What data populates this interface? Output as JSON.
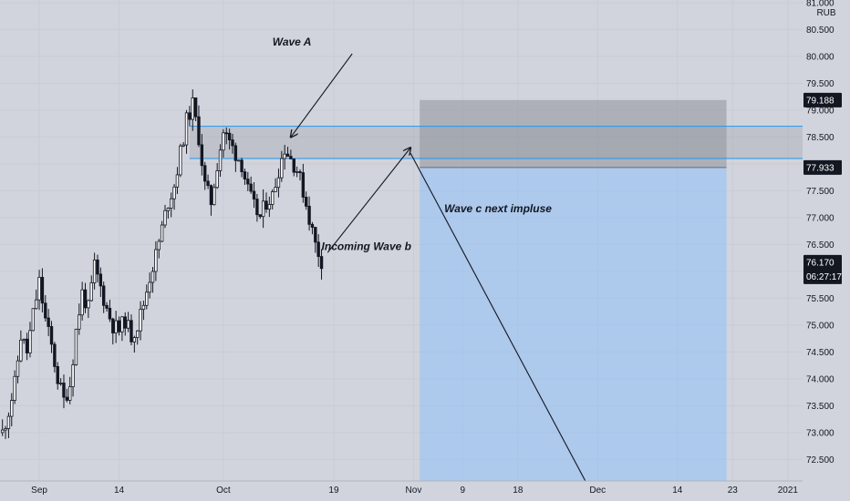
{
  "chart_data": {
    "type": "candlestick",
    "currency": "RUB",
    "y_ticks": [
      "72.500",
      "73.000",
      "73.500",
      "74.000",
      "74.500",
      "75.000",
      "75.500",
      "76.000",
      "76.500",
      "77.000",
      "77.500",
      "78.000",
      "78.500",
      "79.000",
      "79.500",
      "80.000",
      "80.500",
      "81.000"
    ],
    "ylim": [
      72.1,
      81.05
    ],
    "x_ticks": [
      {
        "label": "Sep",
        "day": 0
      },
      {
        "label": "14",
        "day": 13
      },
      {
        "label": "Oct",
        "day": 30
      },
      {
        "label": "19",
        "day": 48
      },
      {
        "label": "Nov",
        "day": 61
      },
      {
        "label": "9",
        "day": 69
      },
      {
        "label": "18",
        "day": 78
      },
      {
        "label": "Dec",
        "day": 91
      },
      {
        "label": "14",
        "day": 104
      },
      {
        "label": "23",
        "day": 113
      },
      {
        "label": "2021",
        "day": 122
      }
    ],
    "x_axis_note": "day = days since Aug 31",
    "xlim": [
      -6.4,
      124.4
    ],
    "price_path": [
      [
        -6.0,
        73.0
      ],
      [
        -5.0,
        73.4
      ],
      [
        -4.0,
        73.9
      ],
      [
        -3.0,
        74.8
      ],
      [
        -2.0,
        74.5
      ],
      [
        -1.0,
        75.2
      ],
      [
        0.0,
        75.8
      ],
      [
        1.0,
        75.1
      ],
      [
        2.0,
        74.6
      ],
      [
        3.0,
        74.0
      ],
      [
        4.0,
        73.6
      ],
      [
        5.0,
        73.9
      ],
      [
        6.0,
        74.9
      ],
      [
        7.0,
        75.6
      ],
      [
        8.0,
        75.3
      ],
      [
        9.0,
        76.1
      ],
      [
        10.0,
        75.7
      ],
      [
        11.0,
        75.3
      ],
      [
        12.0,
        75.0
      ],
      [
        13.0,
        74.9
      ],
      [
        14.0,
        75.1
      ],
      [
        15.0,
        74.8
      ],
      [
        16.0,
        75.0
      ],
      [
        17.0,
        75.4
      ],
      [
        18.0,
        75.9
      ],
      [
        19.0,
        76.3
      ],
      [
        20.0,
        76.8
      ],
      [
        21.0,
        77.3
      ],
      [
        22.0,
        77.6
      ],
      [
        23.0,
        78.2
      ],
      [
        24.0,
        78.8
      ],
      [
        25.0,
        79.1
      ],
      [
        26.0,
        78.5
      ],
      [
        27.0,
        77.6
      ],
      [
        28.0,
        77.3
      ],
      [
        29.0,
        78.0
      ],
      [
        30.0,
        78.6
      ],
      [
        31.0,
        78.4
      ],
      [
        32.0,
        78.2
      ],
      [
        33.0,
        78.0
      ],
      [
        34.0,
        77.5
      ],
      [
        35.0,
        77.2
      ],
      [
        36.0,
        77.0
      ],
      [
        37.0,
        77.3
      ],
      [
        38.0,
        77.4
      ],
      [
        39.0,
        77.9
      ],
      [
        40.0,
        78.3
      ],
      [
        41.0,
        78.1
      ],
      [
        42.0,
        77.9
      ],
      [
        43.0,
        77.5
      ],
      [
        44.0,
        77.0
      ],
      [
        45.0,
        76.5
      ],
      [
        46.0,
        76.2
      ]
    ],
    "current_price": 76.17,
    "countdown": "06:27:17",
    "tags": [
      {
        "price": 79.188,
        "label": "79.188"
      },
      {
        "price": 77.933,
        "label": "77.933"
      }
    ],
    "colors": {
      "candle_up": "#ffffff",
      "candle_down": "#131722",
      "wick": "#131722",
      "band_line": "#2196f3",
      "stop_zone": "#9598a1",
      "target_zone": "#90bff9",
      "tag_bg": "#131722",
      "last_price_bg": "#131722"
    },
    "band": {
      "upper": 78.7,
      "lower": 78.1
    },
    "stop_zone": {
      "day_start": 62.0,
      "day_end": 112.0,
      "top": 79.188,
      "bottom": 77.933
    },
    "target_zone": {
      "day_start": 62.0,
      "day_end": 112.0,
      "top": 77.933,
      "bottom": 72.1
    },
    "annotations": [
      {
        "text": "Wave A",
        "day": 38.0,
        "price": 80.2
      },
      {
        "text": "Incoming Wave b",
        "day": 46.0,
        "price": 76.4
      },
      {
        "text": "Wave c next impluse",
        "day": 66.0,
        "price": 77.1
      }
    ],
    "arrows": [
      {
        "from": [
          51.0,
          80.05
        ],
        "to": [
          41.0,
          78.5
        ]
      },
      {
        "from": [
          47.0,
          76.35
        ],
        "to": [
          60.5,
          78.3
        ]
      }
    ],
    "projection": [
      [
        60.5,
        78.2
      ],
      [
        89.0,
        72.1
      ]
    ]
  }
}
